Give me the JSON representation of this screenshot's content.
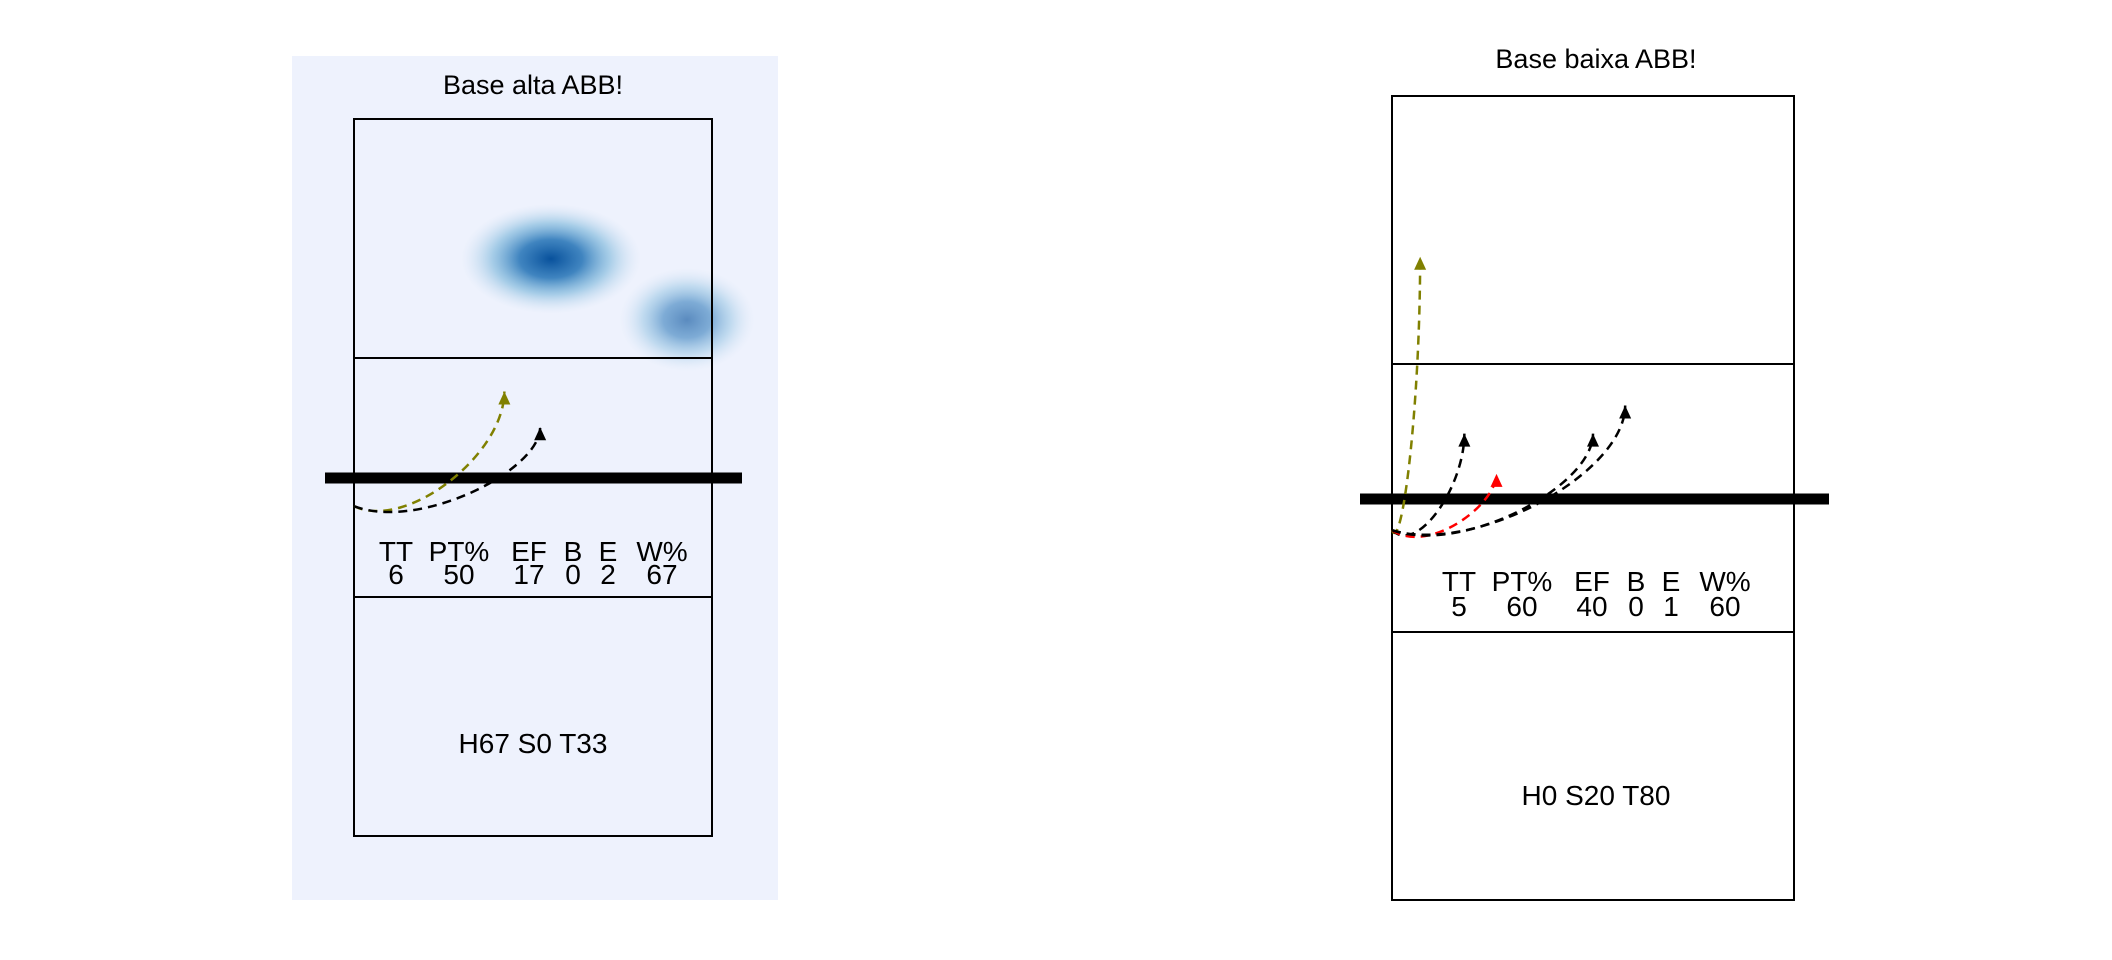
{
  "chart_data": [
    {
      "type": "volleyball-court-heatmap",
      "title": "Base alta ABB!",
      "shaded_panel": true,
      "panel_color": "#eef2fd",
      "stats": {
        "headers": [
          "TT",
          "PT%",
          "EF",
          "B",
          "E",
          "W%"
        ],
        "values": [
          "6",
          "50",
          "17",
          "0",
          "2",
          "67"
        ]
      },
      "summary": "H67 S0 T33",
      "heat_spots": [
        {
          "x": 0.55,
          "y": 0.195,
          "intensity": 1.0
        },
        {
          "x": 0.93,
          "y": 0.28,
          "intensity": 0.45
        }
      ],
      "serves": [
        {
          "from": [
            0.0,
            0.54
          ],
          "to": [
            0.42,
            0.38
          ],
          "color": "#808000"
        },
        {
          "from": [
            0.0,
            0.54
          ],
          "to": [
            0.52,
            0.43
          ],
          "color": "#000000"
        }
      ]
    },
    {
      "type": "volleyball-court-heatmap",
      "title": "Base baixa ABB!",
      "shaded_panel": false,
      "panel_color": "#ffffff",
      "stats": {
        "headers": [
          "TT",
          "PT%",
          "EF",
          "B",
          "E",
          "W%"
        ],
        "values": [
          "5",
          "60",
          "40",
          "0",
          "1",
          "60"
        ]
      },
      "summary": "H0 S20 T80",
      "heat_spots": [],
      "serves": [
        {
          "from": [
            0.0,
            0.54
          ],
          "to": [
            0.07,
            0.2
          ],
          "color": "#808000"
        },
        {
          "from": [
            0.0,
            0.54
          ],
          "to": [
            0.18,
            0.42
          ],
          "color": "#000000"
        },
        {
          "from": [
            0.0,
            0.54
          ],
          "to": [
            0.26,
            0.47
          ],
          "color": "#ff0000"
        },
        {
          "from": [
            0.0,
            0.54
          ],
          "to": [
            0.5,
            0.42
          ],
          "color": "#000000"
        },
        {
          "from": [
            0.0,
            0.54
          ],
          "to": [
            0.58,
            0.385
          ],
          "color": "#000000"
        }
      ]
    }
  ]
}
